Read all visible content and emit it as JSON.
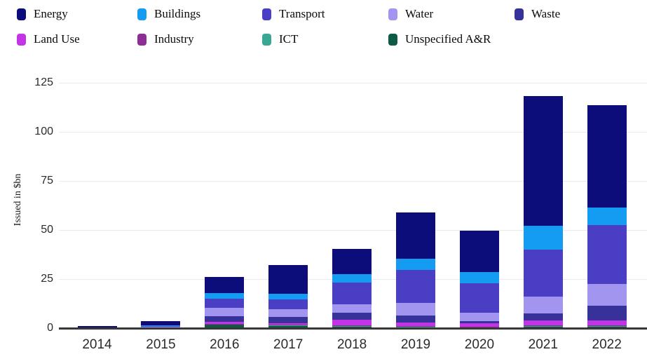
{
  "chart_data": {
    "type": "bar",
    "stacked": true,
    "title": "",
    "ylabel": "Issued in $bn",
    "xlabel": "",
    "ylim": [
      0,
      125
    ],
    "yticks": [
      0,
      25,
      50,
      75,
      100,
      125
    ],
    "grid": true,
    "legend_position": "top",
    "categories": [
      "2014",
      "2015",
      "2016",
      "2017",
      "2018",
      "2019",
      "2020",
      "2021",
      "2022"
    ],
    "series": [
      {
        "name": "Energy",
        "color": "#0c0c7a",
        "values": [
          0.5,
          2.0,
          8.0,
          14.4,
          13.0,
          23.8,
          20.8,
          65.9,
          52.1
        ]
      },
      {
        "name": "Buildings",
        "color": "#149bf2",
        "values": [
          0.1,
          0.3,
          3.0,
          2.9,
          4.2,
          5.6,
          6.0,
          12.3,
          9.2
        ]
      },
      {
        "name": "Transport",
        "color": "#4a3ec4",
        "values": [
          0.3,
          0.6,
          4.7,
          5.1,
          11.3,
          16.7,
          14.9,
          24.0,
          29.8
        ]
      },
      {
        "name": "Water",
        "color": "#a195ef",
        "values": [
          0.1,
          0.3,
          4.2,
          3.9,
          4.2,
          6.3,
          4.2,
          8.6,
          11.0
        ]
      },
      {
        "name": "Waste",
        "color": "#363299",
        "values": [
          0.0,
          0.2,
          3.0,
          3.2,
          3.6,
          3.6,
          1.2,
          3.3,
          7.5
        ]
      },
      {
        "name": "Land Use",
        "color": "#c334e6",
        "values": [
          0.0,
          0.0,
          0.8,
          0.6,
          2.9,
          2.1,
          1.7,
          2.5,
          2.6
        ]
      },
      {
        "name": "Industry",
        "color": "#8c2e93",
        "values": [
          0.0,
          0.0,
          0.3,
          0.3,
          0.2,
          0.2,
          0.2,
          0.6,
          0.4
        ]
      },
      {
        "name": "ICT",
        "color": "#3aa795",
        "values": [
          0.0,
          0.0,
          0.2,
          0.1,
          0.1,
          0.2,
          0.1,
          0.2,
          0.1
        ]
      },
      {
        "name": "Unspecified A&R",
        "color": "#0d5a45",
        "values": [
          0.0,
          0.1,
          1.8,
          1.5,
          1.0,
          0.5,
          0.4,
          0.8,
          1.0
        ]
      }
    ],
    "totals": [
      1.0,
      3.5,
      26.0,
      32.0,
      40.5,
      59.0,
      49.5,
      118.2,
      113.7
    ]
  },
  "axis": {
    "line_color": "#383838",
    "grid_color": "#eaeaea",
    "text_color": "#2b2b2b"
  }
}
